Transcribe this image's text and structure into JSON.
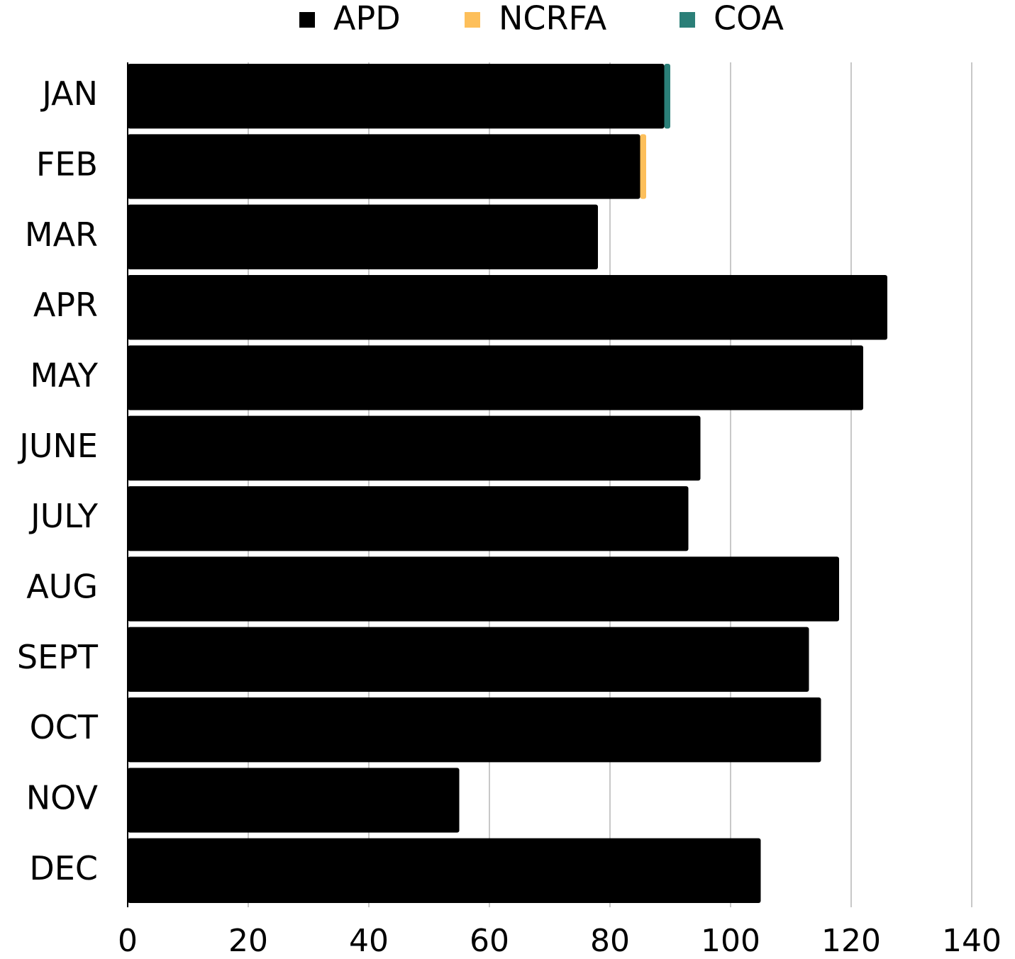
{
  "chart_data": {
    "type": "stacked_barh",
    "categories": [
      "JAN",
      "FEB",
      "MAR",
      "APR",
      "MAY",
      "JUNE",
      "JULY",
      "AUG",
      "SEPT",
      "OCT",
      "NOV",
      "DEC"
    ],
    "series": [
      {
        "name": "APD",
        "color": "#000000",
        "values": [
          89,
          85,
          78,
          126,
          122,
          95,
          93,
          118,
          113,
          115,
          55,
          105
        ]
      },
      {
        "name": "NCRFA",
        "color": "#fdbf5a",
        "values": [
          0,
          1,
          0,
          0,
          0,
          0,
          0,
          0,
          0,
          0,
          0,
          0
        ]
      },
      {
        "name": "COA",
        "color": "#2b7f78",
        "values": [
          1,
          0,
          0,
          0,
          0,
          0,
          0,
          0,
          0,
          0,
          0,
          0
        ]
      }
    ],
    "xlim": [
      0,
      140
    ],
    "xticks": [
      0,
      20,
      40,
      60,
      80,
      100,
      120,
      140
    ],
    "grid": true,
    "legend": "top"
  }
}
